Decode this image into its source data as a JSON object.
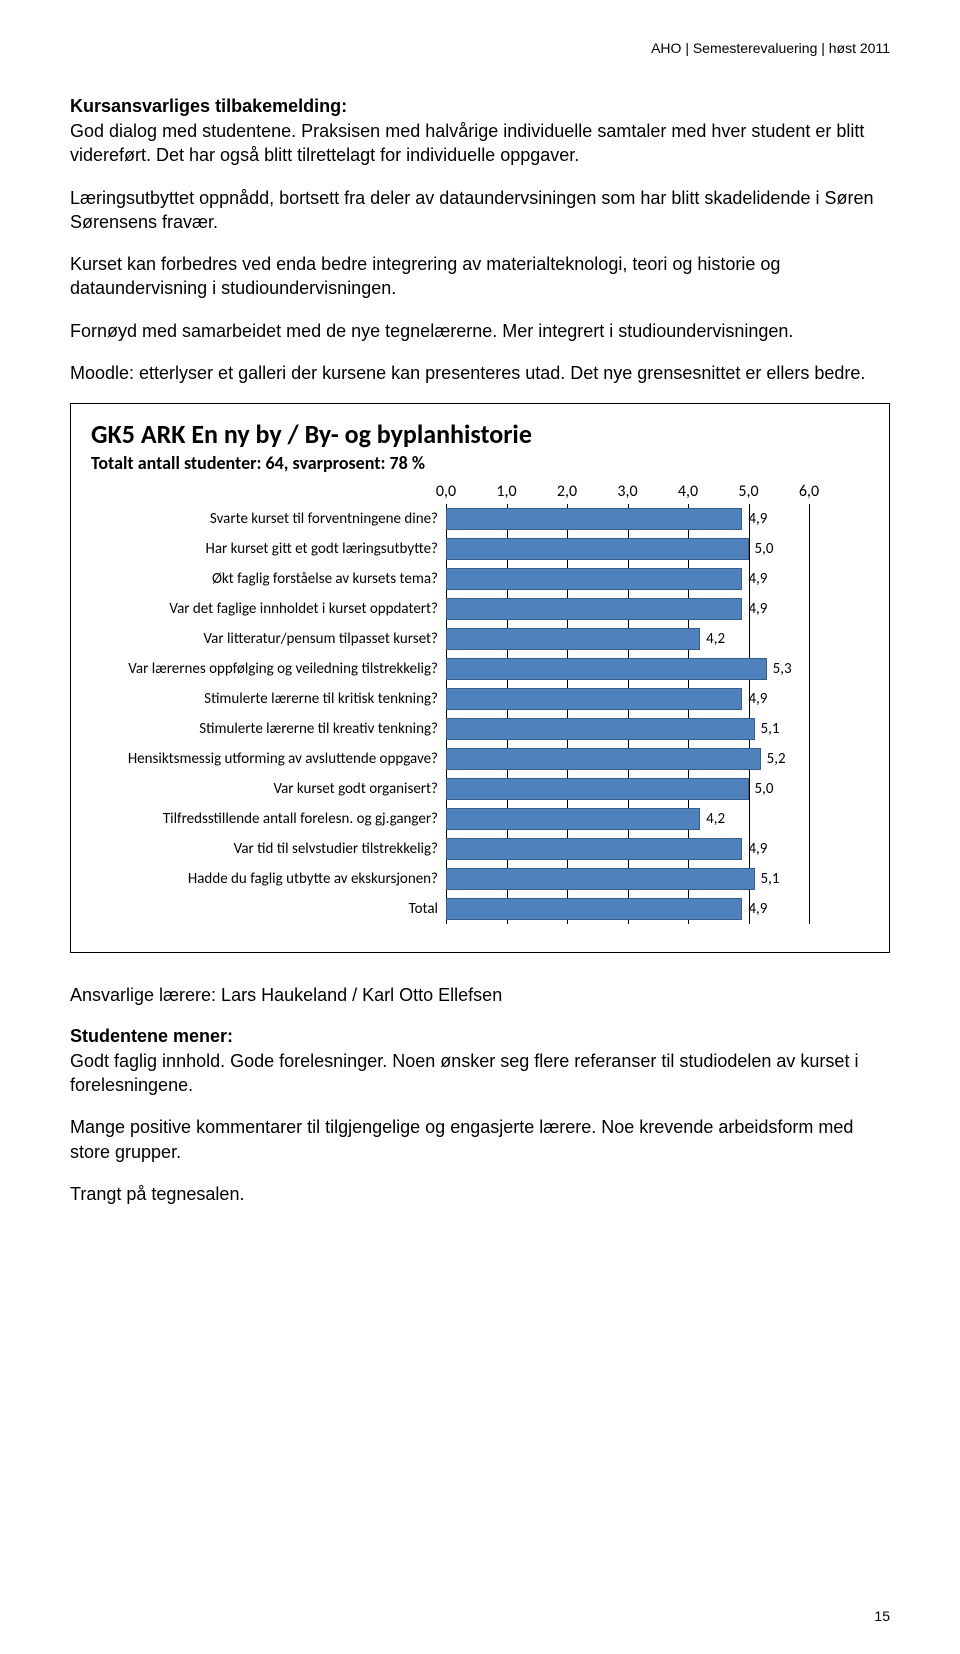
{
  "header": "AHO | Semesterevaluering | høst 2011",
  "sections": {
    "h1": "Kursansvarliges tilbakemelding:",
    "p1": "God dialog med studentene. Praksisen med halvårige individuelle samtaler med hver student er blitt videreført. Det har også blitt tilrettelagt for individuelle oppgaver.",
    "p2": "Læringsutbyttet oppnådd, bortsett fra deler av dataundervsiningen som har blitt skadelidende i Søren Sørensens fravær.",
    "p3": "Kurset kan forbedres ved enda bedre integrering av materialteknologi, teori og historie og dataundervisning i studioundervisningen.",
    "p4": "Fornøyd med samarbeidet med de nye tegnelærerne. Mer integrert i studioundervisningen.",
    "p5": "Moodle: etterlyser et galleri der kursene kan presenteres utad. Det nye grensesnittet er ellers bedre.",
    "teachers": "Ansvarlige lærere: Lars Haukeland / Karl Otto Ellefsen",
    "h2": "Studentene mener:",
    "p6": "Godt faglig innhold. Gode forelesninger. Noen ønsker seg flere referanser til studiodelen av kurset i forelesningene.",
    "p7": "Mange positive kommentarer til tilgjengelige og engasjerte lærere. Noe krevende arbeidsform med store grupper.",
    "p8": "Trangt på tegnesalen."
  },
  "chart": {
    "type": "bar-horizontal",
    "title": "GK5 ARK En ny by / By- og byplanhistorie",
    "subtitle": "Totalt antall studenter: 64, svarprosent: 78 %",
    "xmin": 0.0,
    "xmax": 6.0,
    "xtick_step": 1.0,
    "ticks": [
      "0,0",
      "1,0",
      "2,0",
      "3,0",
      "4,0",
      "5,0",
      "6,0"
    ],
    "bar_color": "#4f81bd",
    "bar_border": "#385d8a",
    "tick_color": "#000000",
    "background": "#ffffff",
    "title_fontsize": 26,
    "subtitle_fontsize": 18,
    "label_fontsize": 15,
    "rows": [
      {
        "label": "Svarte kurset til forventningene dine?",
        "value": 4.9,
        "value_label": "4,9"
      },
      {
        "label": "Har kurset gitt et godt læringsutbytte?",
        "value": 5.0,
        "value_label": "5,0"
      },
      {
        "label": "Økt faglig forståelse av kursets tema?",
        "value": 4.9,
        "value_label": "4,9"
      },
      {
        "label": "Var det faglige innholdet i kurset oppdatert?",
        "value": 4.9,
        "value_label": "4,9"
      },
      {
        "label": "Var litteratur/pensum tilpasset kurset?",
        "value": 4.2,
        "value_label": "4,2"
      },
      {
        "label": "Var lærernes oppfølging og veiledning tilstrekkelig?",
        "value": 5.3,
        "value_label": "5,3"
      },
      {
        "label": "Stimulerte lærerne til kritisk tenkning?",
        "value": 4.9,
        "value_label": "4,9"
      },
      {
        "label": "Stimulerte lærerne til kreativ tenkning?",
        "value": 5.1,
        "value_label": "5,1"
      },
      {
        "label": "Hensiktsmessig utforming av avsluttende oppgave?",
        "value": 5.2,
        "value_label": "5,2"
      },
      {
        "label": "Var kurset godt organisert?",
        "value": 5.0,
        "value_label": "5,0"
      },
      {
        "label": "Tilfredsstillende antall forelesn. og gj.ganger?",
        "value": 4.2,
        "value_label": "4,2"
      },
      {
        "label": "Var tid til selvstudier tilstrekkelig?",
        "value": 4.9,
        "value_label": "4,9"
      },
      {
        "label": "Hadde du faglig utbytte av ekskursjonen?",
        "value": 5.1,
        "value_label": "5,1"
      },
      {
        "label": "Total",
        "value": 4.9,
        "value_label": "4,9"
      }
    ]
  },
  "page_number": "15"
}
